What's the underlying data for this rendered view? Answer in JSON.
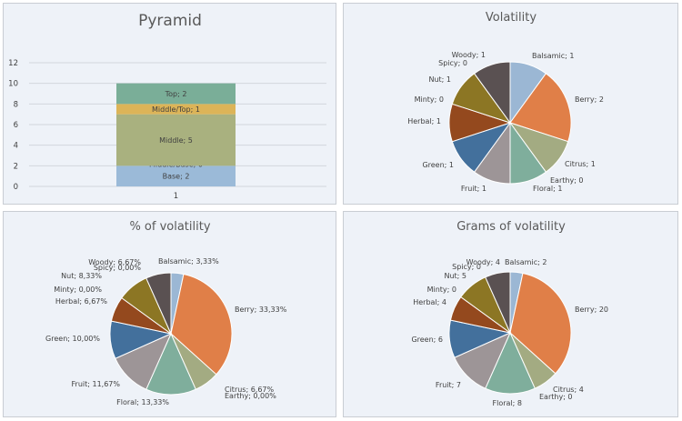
{
  "colors": {
    "Balsamic": "#9bb7d4",
    "Berry": "#e07f48",
    "Citrus": "#a3ab82",
    "Earthy": "#c9a45a",
    "Floral": "#7fae9c",
    "Fruit": "#9d9597",
    "Green": "#43709c",
    "Herbal": "#94491e",
    "Minty": "#b0a060",
    "Nut": "#8c7624",
    "Spicy": "#7a6d4e",
    "Woody": "#5a5152",
    "Top": "#7aae98",
    "Middle/Top": "#dcb458",
    "Middle": "#a9b17f",
    "Middle/Base": "#8fa07e",
    "Base": "#9bbad8"
  },
  "chart_data": [
    {
      "type": "bar",
      "title": "Pyramid",
      "stacked": true,
      "categories": [
        "1"
      ],
      "series": [
        {
          "name": "Base",
          "values": [
            2
          ],
          "label": "Base; 2"
        },
        {
          "name": "Middle/Base",
          "values": [
            0
          ],
          "label": "Middle/Base; 0"
        },
        {
          "name": "Middle",
          "values": [
            5
          ],
          "label": "Middle; 5"
        },
        {
          "name": "Middle/Top",
          "values": [
            1
          ],
          "label": "Middle/Top; 1"
        },
        {
          "name": "Top",
          "values": [
            2
          ],
          "label": "Top; 2"
        }
      ],
      "ylim": [
        0,
        12
      ],
      "yticks": [
        "0",
        "2",
        "4",
        "6",
        "8",
        "10",
        "12"
      ],
      "grid": true
    },
    {
      "type": "pie",
      "title": "Volatility",
      "labels": [
        "Balsamic",
        "Berry",
        "Citrus",
        "Earthy",
        "Floral",
        "Fruit",
        "Green",
        "Herbal",
        "Minty",
        "Nut",
        "Spicy",
        "Woody"
      ],
      "values": [
        1,
        2,
        1,
        0,
        1,
        1,
        1,
        1,
        0,
        1,
        0,
        1
      ],
      "data_labels": [
        "Balsamic; 1",
        "Berry; 2",
        "Citrus; 1",
        "Earthy; 0",
        "Floral; 1",
        "Fruit; 1",
        "Green; 1",
        "Herbal; 1",
        "Minty; 0",
        "Nut; 1",
        "Spicy; 0",
        "Woody; 1"
      ]
    },
    {
      "type": "pie",
      "title": "% of volatility",
      "labels": [
        "Balsamic",
        "Berry",
        "Citrus",
        "Earthy",
        "Floral",
        "Fruit",
        "Green",
        "Herbal",
        "Minty",
        "Nut",
        "Spicy",
        "Woody"
      ],
      "values": [
        3.33,
        33.33,
        6.67,
        0,
        13.33,
        11.67,
        10,
        6.67,
        0,
        8.33,
        0,
        6.67
      ],
      "data_labels": [
        "Balsamic; 3,33%",
        "Berry; 33,33%",
        "Citrus; 6,67%",
        "Earthy; 0,00%",
        "Floral; 13,33%",
        "Fruit; 11,67%",
        "Green; 10,00%",
        "Herbal; 6,67%",
        "Minty; 0,00%",
        "Nut; 8,33%",
        "Spicy; 0,00%",
        "Woody; 6,67%"
      ]
    },
    {
      "type": "pie",
      "title": "Grams of volatility",
      "labels": [
        "Balsamic",
        "Berry",
        "Citrus",
        "Earthy",
        "Floral",
        "Fruit",
        "Green",
        "Herbal",
        "Minty",
        "Nut",
        "Spicy",
        "Woody"
      ],
      "values": [
        2,
        20,
        4,
        0,
        8,
        7,
        6,
        4,
        0,
        5,
        0,
        4
      ],
      "data_labels": [
        "Balsamic; 2",
        "Berry; 20",
        "Citrus; 4",
        "Earthy; 0",
        "Floral; 8",
        "Fruit; 7",
        "Green; 6",
        "Herbal; 4",
        "Minty; 0",
        "Nut; 5",
        "Spicy; 0",
        "Woody; 4"
      ]
    }
  ]
}
